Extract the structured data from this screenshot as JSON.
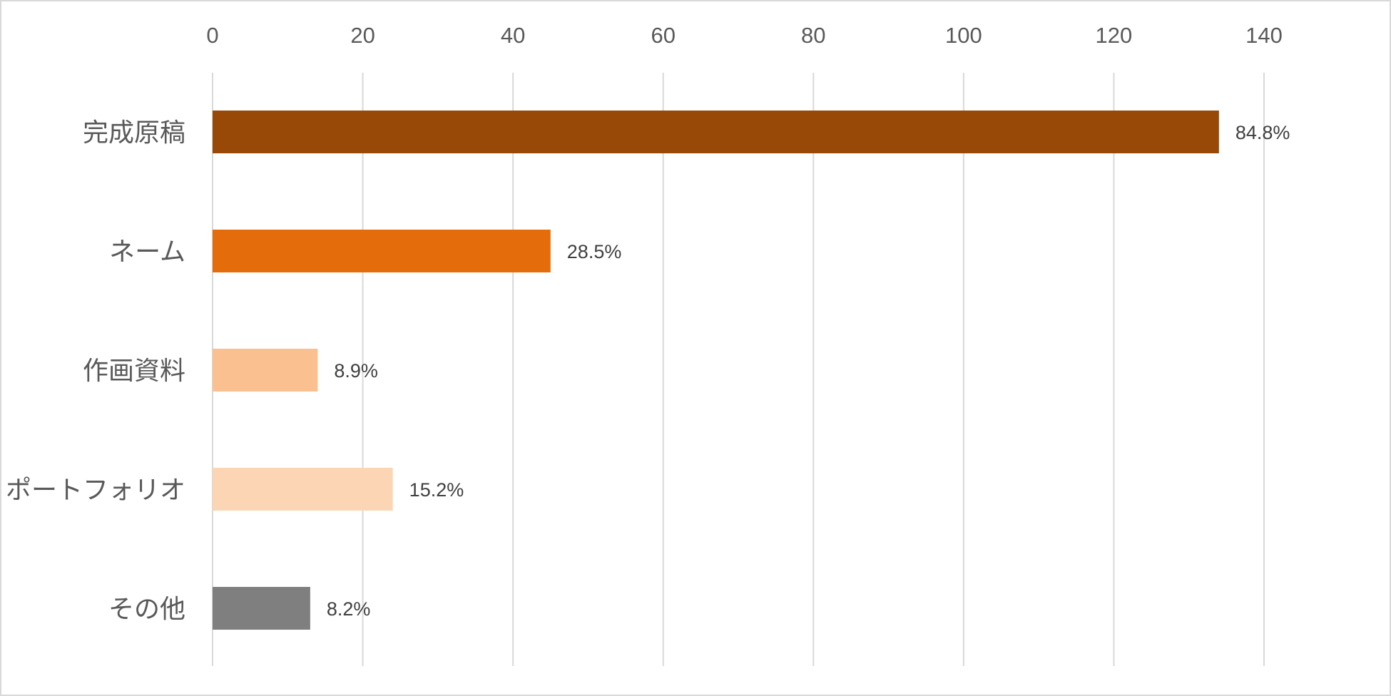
{
  "chart_data": {
    "type": "bar",
    "orientation": "horizontal",
    "categories": [
      "完成原稿",
      "ネーム",
      "作画資料",
      "ポートフォリオ",
      "その他"
    ],
    "values": [
      134,
      45,
      14,
      24,
      13
    ],
    "data_labels": [
      "84.8%",
      "28.5%",
      "8.9%",
      "15.2%",
      "8.2%"
    ],
    "colors": [
      "#984807",
      "#E46C0A",
      "#FAC090",
      "#FCD5B5",
      "#7F7F7F"
    ],
    "x_ticks": [
      "0",
      "20",
      "40",
      "60",
      "80",
      "100",
      "120",
      "140"
    ],
    "xlim": [
      0,
      140
    ],
    "x_axis_position": "top",
    "grid": true,
    "legend": "none",
    "title": "",
    "xlabel": "",
    "ylabel": ""
  }
}
